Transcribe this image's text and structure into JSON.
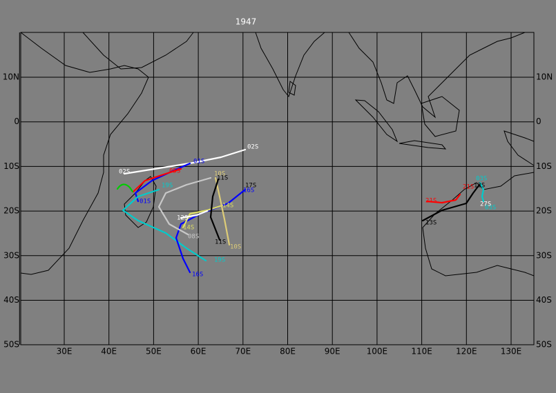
{
  "title": "1947",
  "lat_labels": [
    "10N",
    "0",
    "10S",
    "20S",
    "30S",
    "40S",
    "50S"
  ],
  "lon_labels": [
    "30E",
    "40E",
    "50E",
    "60E",
    "70E",
    "80E",
    "90E",
    "100E",
    "110E",
    "120E",
    "130E"
  ],
  "storms": [
    {
      "name": "02S"
    },
    {
      "name": "01S"
    },
    {
      "name": "05S"
    },
    {
      "name": "19S"
    },
    {
      "name": "16S"
    },
    {
      "name": "17S"
    },
    {
      "name": "14S"
    },
    {
      "name": "08S"
    },
    {
      "name": "10S"
    },
    {
      "name": "11S"
    },
    {
      "name": "12S"
    },
    {
      "name": "21S"
    },
    {
      "name": "13S"
    },
    {
      "name": "03S"
    },
    {
      "name": "27S"
    }
  ]
}
